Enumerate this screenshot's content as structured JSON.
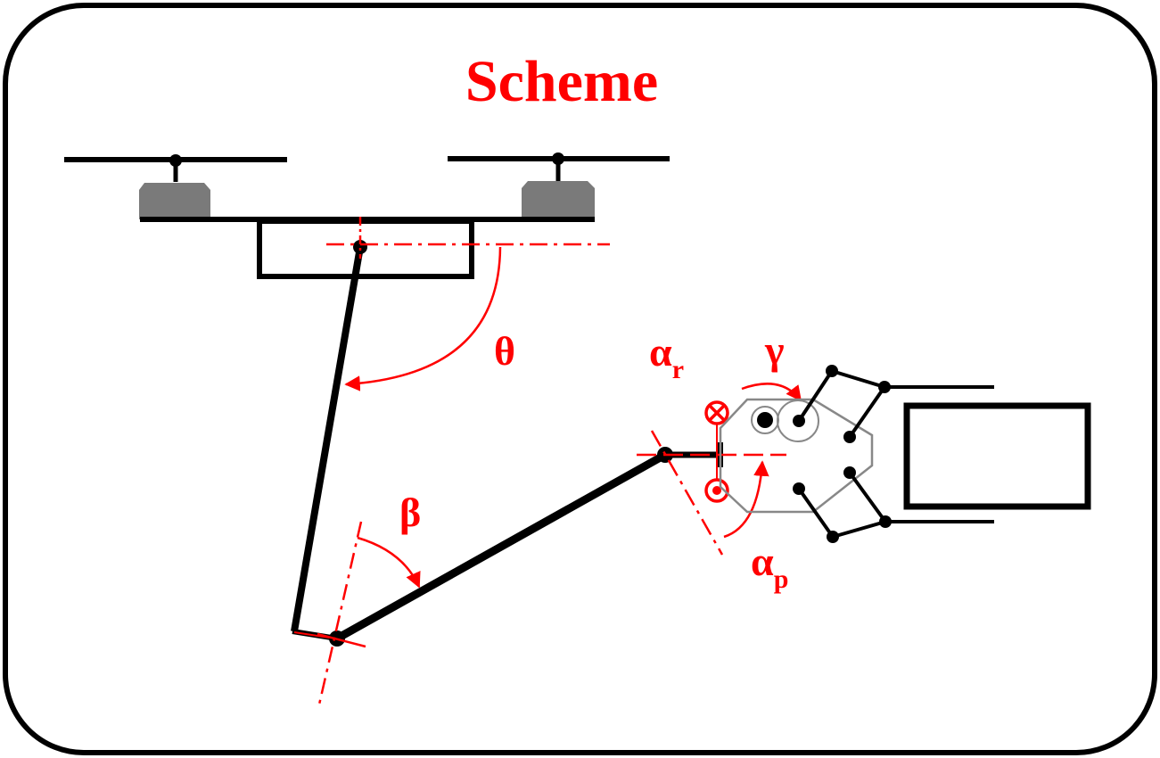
{
  "title": "Scheme",
  "angles": {
    "theta": "θ",
    "beta": "β",
    "gamma": "γ",
    "alpha_r": {
      "base": "α",
      "sub": "r"
    },
    "alpha_p": {
      "base": "α",
      "sub": "p"
    }
  },
  "colors": {
    "accent": "#ff0000",
    "structure": "#000000",
    "motor": "#7a7a7a",
    "gripper_outline": "#888888"
  },
  "icons": {
    "into_page": "circle-cross-icon",
    "out_of_page": "circle-dot-icon"
  }
}
